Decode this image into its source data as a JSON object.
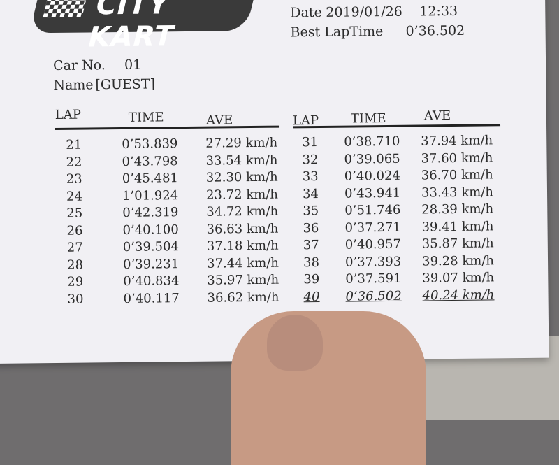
{
  "header": {
    "logo_text": "CITY KART",
    "date_label": "Date",
    "date": "2019/01/26",
    "time": "12:33",
    "best_laptime_label": "Best LapTime",
    "best_laptime": "0’36.502",
    "car_label": "Car No.",
    "car_no": "01",
    "name_label": "Name",
    "name": "[GUEST]"
  },
  "columns": {
    "lap": "LAP",
    "time": "TIME",
    "ave": "AVE"
  },
  "left_table": [
    {
      "lap": "21",
      "time": "0’53.839",
      "ave": "27.29 km/h"
    },
    {
      "lap": "22",
      "time": "0’43.798",
      "ave": "33.54 km/h"
    },
    {
      "lap": "23",
      "time": "0’45.481",
      "ave": "32.30 km/h"
    },
    {
      "lap": "24",
      "time": "1’01.924",
      "ave": "23.72 km/h"
    },
    {
      "lap": "25",
      "time": "0’42.319",
      "ave": "34.72 km/h"
    },
    {
      "lap": "26",
      "time": "0’40.100",
      "ave": "36.63 km/h"
    },
    {
      "lap": "27",
      "time": "0’39.504",
      "ave": "37.18 km/h"
    },
    {
      "lap": "28",
      "time": "0’39.231",
      "ave": "37.44 km/h"
    },
    {
      "lap": "29",
      "time": "0’40.834",
      "ave": "35.97 km/h"
    },
    {
      "lap": "30",
      "time": "0’40.117",
      "ave": "36.62 km/h"
    }
  ],
  "right_table": [
    {
      "lap": "31",
      "time": "0’38.710",
      "ave": "37.94 km/h"
    },
    {
      "lap": "32",
      "time": "0’39.065",
      "ave": "37.60 km/h"
    },
    {
      "lap": "33",
      "time": "0’40.024",
      "ave": "36.70 km/h"
    },
    {
      "lap": "34",
      "time": "0’43.941",
      "ave": "33.43 km/h"
    },
    {
      "lap": "35",
      "time": "0’51.746",
      "ave": "28.39 km/h"
    },
    {
      "lap": "36",
      "time": "0’37.271",
      "ave": "39.41 km/h"
    },
    {
      "lap": "37",
      "time": "0’40.957",
      "ave": "35.87 km/h"
    },
    {
      "lap": "38",
      "time": "0’37.393",
      "ave": "39.28 km/h"
    },
    {
      "lap": "39",
      "time": "0’37.591",
      "ave": "39.07 km/h"
    },
    {
      "lap": "40",
      "time": "0’36.502",
      "ave": "40.24 km/h",
      "best": true
    }
  ]
}
